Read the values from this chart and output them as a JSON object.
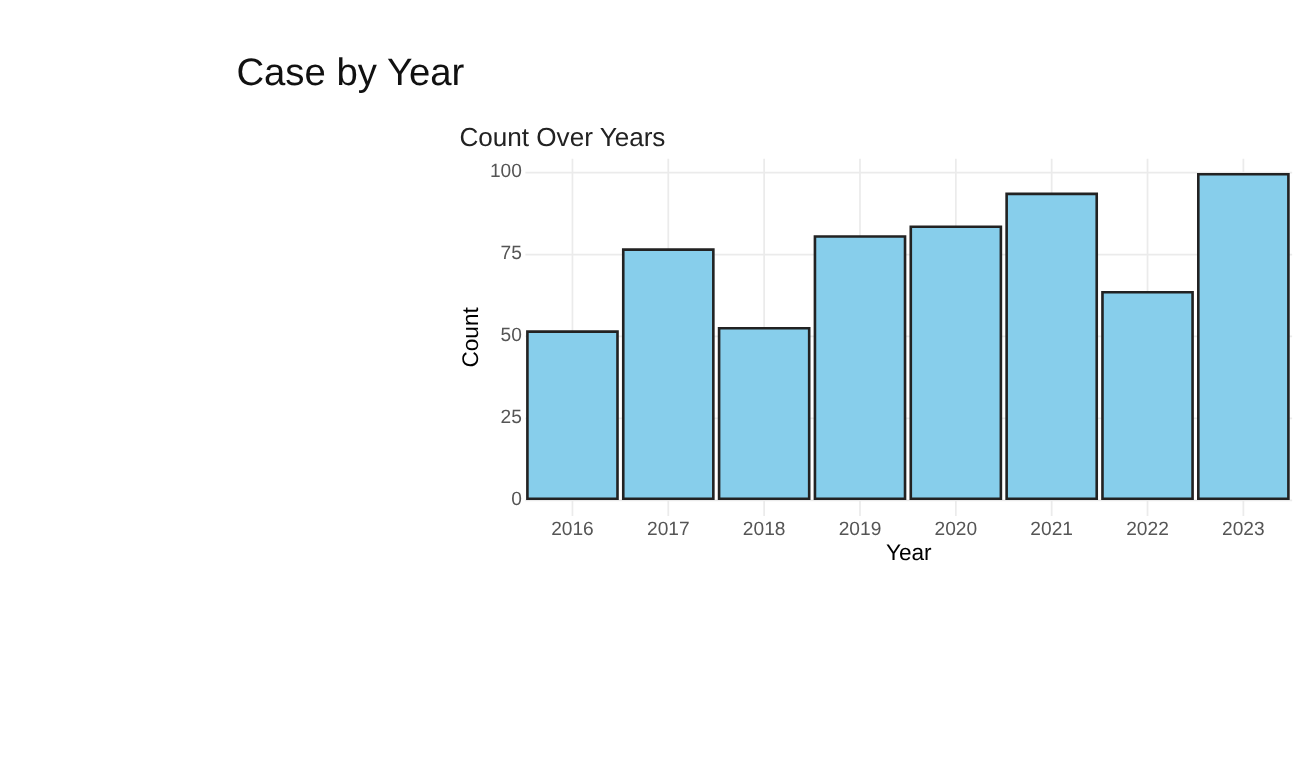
{
  "chart_data": {
    "type": "bar",
    "title": "Case by Year",
    "subtitle": "Count Over Years",
    "xlabel": "Year",
    "ylabel": "Count",
    "categories": [
      "2016",
      "2017",
      "2018",
      "2019",
      "2020",
      "2021",
      "2022",
      "2023"
    ],
    "values": [
      51,
      76,
      52,
      80,
      83,
      93,
      63,
      99
    ],
    "color": "#87ceeb",
    "ylim": [
      -5,
      104
    ],
    "yticks": [
      0,
      25,
      50,
      75,
      100
    ],
    "grid": true
  }
}
